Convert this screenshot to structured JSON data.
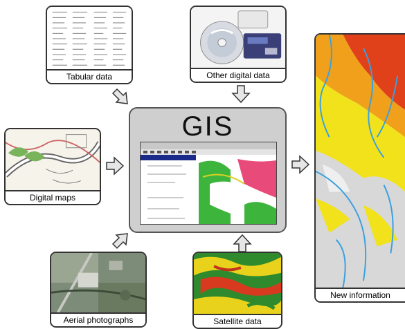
{
  "gis": {
    "title": "GIS"
  },
  "inputs": {
    "tabular": "Tabular data",
    "other": "Other digital data",
    "maps": "Digital maps",
    "aerial": "Aerial photographs",
    "satellite": "Satellite data"
  },
  "output": {
    "label": "New information"
  },
  "colors": {
    "gis_panel": "#cfcfcf",
    "arrow_fill": "#e6e6e6",
    "map_red": "#e0401a",
    "map_yellow": "#f2e21c",
    "river_blue": "#3aa0e0"
  }
}
